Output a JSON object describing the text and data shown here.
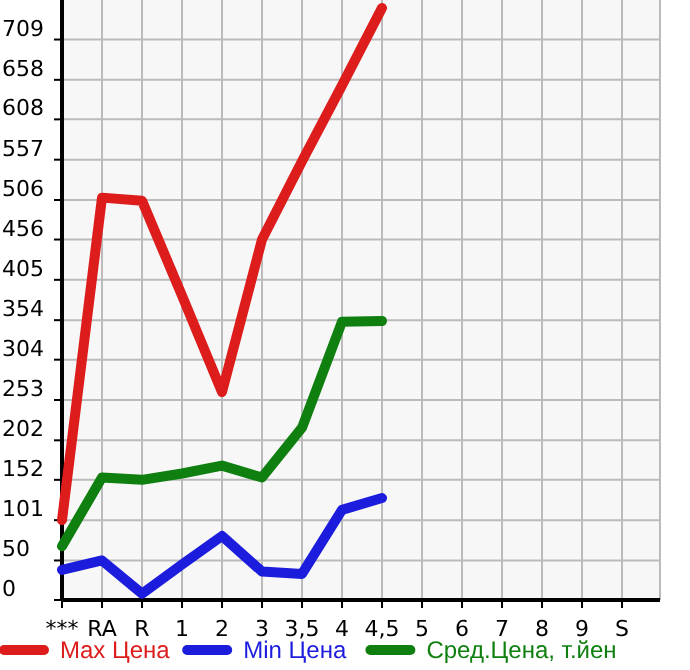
{
  "chart_data": {
    "type": "line",
    "categories": [
      "***",
      "RA",
      "R",
      "1",
      "2",
      "3",
      "3,5",
      "4",
      "4,5",
      "5",
      "6",
      "7",
      "8",
      "9",
      "S"
    ],
    "series": [
      {
        "name": "Max Цена",
        "color": "#dd1c1c",
        "values": [
          101,
          509,
          505,
          385,
          263,
          456,
          555,
          651,
          749,
          null,
          null,
          null,
          null,
          null,
          null
        ]
      },
      {
        "name": "Min Цена",
        "color": "#1c1cdd",
        "values": [
          38,
          50,
          8,
          45,
          81,
          36,
          33,
          114,
          129,
          null,
          null,
          null,
          null,
          null,
          null
        ]
      },
      {
        "name": "Сред.Цена, т.йен",
        "color": "#0f7f0f",
        "values": [
          68,
          155,
          152,
          160,
          170,
          155,
          218,
          352,
          353,
          null,
          null,
          null,
          null,
          null,
          null
        ]
      }
    ],
    "ylim": [
      0,
      759
    ],
    "yticks": [
      0,
      50,
      101,
      152,
      202,
      253,
      304,
      354,
      405,
      456,
      506,
      557,
      608,
      658,
      709
    ],
    "grid": true,
    "legend": "bottom",
    "marker": "none",
    "line_style": "solid"
  }
}
